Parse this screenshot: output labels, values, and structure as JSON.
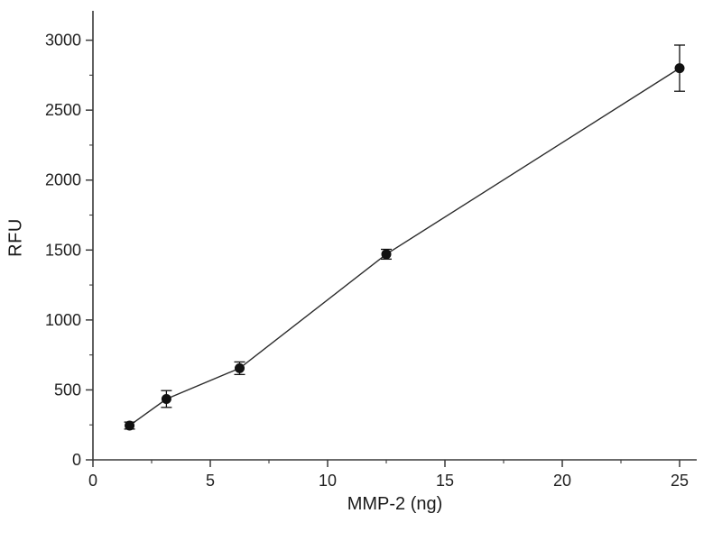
{
  "chart_data": {
    "type": "line",
    "title": "",
    "xlabel": "MMP-2 (ng)",
    "ylabel": "RFU",
    "x": [
      1.56,
      3.13,
      6.25,
      12.5,
      25
    ],
    "y": [
      245,
      435,
      655,
      1470,
      2800
    ],
    "y_err": [
      25,
      60,
      45,
      35,
      165
    ],
    "xlim": [
      0,
      25.73
    ],
    "ylim": [
      0,
      3210
    ],
    "x_ticks": [
      0,
      5,
      10,
      15,
      20,
      25
    ],
    "y_ticks": [
      0,
      500,
      1000,
      1500,
      2000,
      2500,
      3000
    ],
    "x_minor_ticks": [
      2.5,
      7.5,
      12.5,
      17.5,
      22.5
    ],
    "y_minor_ticks": [
      250,
      750,
      1250,
      1750,
      2250,
      2750
    ],
    "grid": false,
    "legend": "none",
    "marker": "filled-circle",
    "marker_color": "#111111",
    "line_color": "#2b2b2b",
    "axis_color": "#3a3a3a",
    "text_color": "#222222"
  }
}
